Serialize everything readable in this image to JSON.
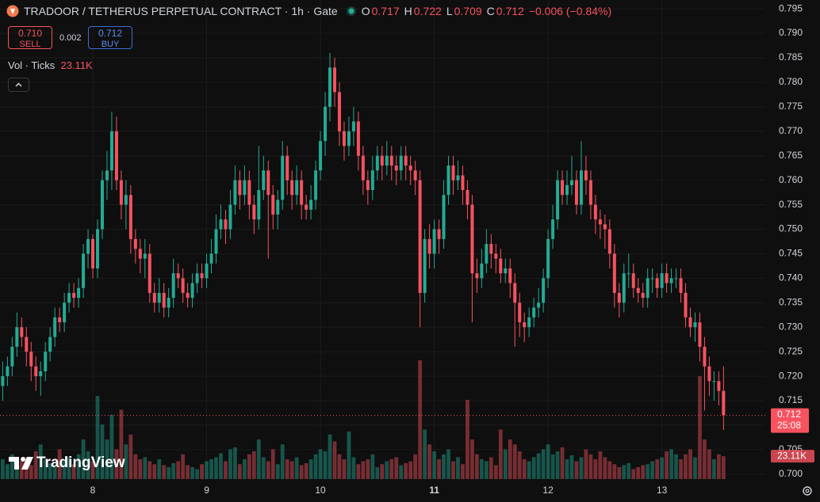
{
  "chart_data": {
    "type": "candlestick",
    "title": "TRADOOR / TETHERUS PERPETUAL CONTRACT · 1h · Gate",
    "ohlc_labels": [
      "O",
      "H",
      "L",
      "C"
    ],
    "change_label": "−0.006 (−0.84%)",
    "sell_price": "0.710",
    "sell_label": "SELL",
    "spread": "0.002",
    "buy_price": "0.712",
    "buy_label": "BUY",
    "volume_title": "Vol · Ticks",
    "volume_value_label": "23.11K",
    "countdown": "25:08",
    "watermark": "TradingView",
    "up_color": "#22ab94",
    "down_color": "#f7525f",
    "ylim": [
      0.699,
      0.7968
    ],
    "yticks": [
      {
        "value": 0.7,
        "label": "0.700"
      },
      {
        "value": 0.705,
        "label": "0.705"
      },
      {
        "value": 0.71,
        "label": "0.710"
      },
      {
        "value": 0.715,
        "label": "0.715"
      },
      {
        "value": 0.72,
        "label": "0.720"
      },
      {
        "value": 0.725,
        "label": "0.725"
      },
      {
        "value": 0.73,
        "label": "0.730"
      },
      {
        "value": 0.735,
        "label": "0.735"
      },
      {
        "value": 0.74,
        "label": "0.740"
      },
      {
        "value": 0.745,
        "label": "0.745"
      },
      {
        "value": 0.75,
        "label": "0.750"
      },
      {
        "value": 0.755,
        "label": "0.755"
      },
      {
        "value": 0.76,
        "label": "0.760"
      },
      {
        "value": 0.765,
        "label": "0.765"
      },
      {
        "value": 0.77,
        "label": "0.770"
      },
      {
        "value": 0.775,
        "label": "0.775"
      },
      {
        "value": 0.78,
        "label": "0.780"
      },
      {
        "value": 0.785,
        "label": "0.785"
      },
      {
        "value": 0.79,
        "label": "0.790"
      },
      {
        "value": 0.795,
        "label": "0.795"
      }
    ],
    "xticks": [
      {
        "value": 19,
        "label": "8"
      },
      {
        "value": 43,
        "label": "9"
      },
      {
        "value": 67,
        "label": "10"
      },
      {
        "value": 91,
        "label": "11"
      },
      {
        "value": 115,
        "label": "12"
      },
      {
        "value": 139,
        "label": "13"
      }
    ],
    "ohlc": [
      [
        0.718,
        0.723,
        0.715,
        0.72
      ],
      [
        0.72,
        0.724,
        0.718,
        0.722
      ],
      [
        0.722,
        0.728,
        0.72,
        0.726
      ],
      [
        0.726,
        0.733,
        0.724,
        0.73
      ],
      [
        0.73,
        0.732,
        0.726,
        0.728
      ],
      [
        0.728,
        0.73,
        0.722,
        0.725
      ],
      [
        0.725,
        0.727,
        0.719,
        0.722
      ],
      [
        0.722,
        0.724,
        0.717,
        0.72
      ],
      [
        0.72,
        0.723,
        0.716,
        0.721
      ],
      [
        0.721,
        0.727,
        0.719,
        0.725
      ],
      [
        0.725,
        0.73,
        0.723,
        0.728
      ],
      [
        0.728,
        0.734,
        0.726,
        0.732
      ],
      [
        0.732,
        0.734,
        0.729,
        0.731
      ],
      [
        0.731,
        0.737,
        0.729,
        0.735
      ],
      [
        0.735,
        0.739,
        0.733,
        0.737
      ],
      [
        0.737,
        0.739,
        0.734,
        0.736
      ],
      [
        0.736,
        0.74,
        0.734,
        0.738
      ],
      [
        0.738,
        0.747,
        0.736,
        0.745
      ],
      [
        0.745,
        0.75,
        0.742,
        0.748
      ],
      [
        0.748,
        0.749,
        0.74,
        0.742
      ],
      [
        0.742,
        0.752,
        0.74,
        0.75
      ],
      [
        0.75,
        0.762,
        0.748,
        0.76
      ],
      [
        0.76,
        0.766,
        0.756,
        0.762
      ],
      [
        0.762,
        0.774,
        0.758,
        0.77
      ],
      [
        0.77,
        0.773,
        0.758,
        0.76
      ],
      [
        0.76,
        0.762,
        0.752,
        0.755
      ],
      [
        0.755,
        0.76,
        0.75,
        0.757
      ],
      [
        0.757,
        0.759,
        0.745,
        0.748
      ],
      [
        0.748,
        0.75,
        0.743,
        0.746
      ],
      [
        0.746,
        0.748,
        0.741,
        0.744
      ],
      [
        0.744,
        0.748,
        0.74,
        0.745
      ],
      [
        0.745,
        0.747,
        0.735,
        0.737
      ],
      [
        0.737,
        0.739,
        0.733,
        0.735
      ],
      [
        0.735,
        0.74,
        0.733,
        0.737
      ],
      [
        0.737,
        0.739,
        0.732,
        0.734
      ],
      [
        0.734,
        0.738,
        0.732,
        0.736
      ],
      [
        0.736,
        0.744,
        0.734,
        0.741
      ],
      [
        0.741,
        0.743,
        0.738,
        0.74
      ],
      [
        0.74,
        0.742,
        0.735,
        0.737
      ],
      [
        0.737,
        0.739,
        0.734,
        0.736
      ],
      [
        0.736,
        0.741,
        0.734,
        0.739
      ],
      [
        0.739,
        0.743,
        0.737,
        0.741
      ],
      [
        0.741,
        0.743,
        0.738,
        0.74
      ],
      [
        0.74,
        0.745,
        0.738,
        0.743
      ],
      [
        0.743,
        0.748,
        0.741,
        0.745
      ],
      [
        0.745,
        0.753,
        0.743,
        0.75
      ],
      [
        0.75,
        0.755,
        0.748,
        0.752
      ],
      [
        0.752,
        0.754,
        0.747,
        0.75
      ],
      [
        0.75,
        0.758,
        0.748,
        0.755
      ],
      [
        0.755,
        0.763,
        0.753,
        0.76
      ],
      [
        0.76,
        0.762,
        0.754,
        0.757
      ],
      [
        0.757,
        0.763,
        0.755,
        0.76
      ],
      [
        0.76,
        0.762,
        0.752,
        0.755
      ],
      [
        0.755,
        0.757,
        0.749,
        0.752
      ],
      [
        0.752,
        0.767,
        0.75,
        0.758
      ],
      [
        0.758,
        0.765,
        0.756,
        0.762
      ],
      [
        0.762,
        0.764,
        0.744,
        0.757
      ],
      [
        0.757,
        0.759,
        0.75,
        0.753
      ],
      [
        0.753,
        0.758,
        0.75,
        0.756
      ],
      [
        0.756,
        0.768,
        0.754,
        0.765
      ],
      [
        0.765,
        0.767,
        0.757,
        0.76
      ],
      [
        0.76,
        0.762,
        0.754,
        0.757
      ],
      [
        0.757,
        0.763,
        0.755,
        0.76
      ],
      [
        0.76,
        0.762,
        0.752,
        0.755
      ],
      [
        0.755,
        0.757,
        0.752,
        0.754
      ],
      [
        0.754,
        0.759,
        0.752,
        0.756
      ],
      [
        0.756,
        0.764,
        0.754,
        0.762
      ],
      [
        0.762,
        0.77,
        0.76,
        0.768
      ],
      [
        0.768,
        0.778,
        0.765,
        0.775
      ],
      [
        0.775,
        0.786,
        0.772,
        0.783
      ],
      [
        0.783,
        0.785,
        0.775,
        0.778
      ],
      [
        0.778,
        0.78,
        0.767,
        0.77
      ],
      [
        0.77,
        0.772,
        0.764,
        0.767
      ],
      [
        0.767,
        0.773,
        0.765,
        0.77
      ],
      [
        0.77,
        0.775,
        0.767,
        0.772
      ],
      [
        0.772,
        0.774,
        0.762,
        0.765
      ],
      [
        0.765,
        0.767,
        0.757,
        0.76
      ],
      [
        0.76,
        0.762,
        0.755,
        0.758
      ],
      [
        0.758,
        0.765,
        0.756,
        0.762
      ],
      [
        0.762,
        0.767,
        0.76,
        0.765
      ],
      [
        0.765,
        0.767,
        0.76,
        0.763
      ],
      [
        0.763,
        0.768,
        0.761,
        0.765
      ],
      [
        0.765,
        0.767,
        0.76,
        0.763
      ],
      [
        0.763,
        0.765,
        0.759,
        0.762
      ],
      [
        0.762,
        0.767,
        0.76,
        0.765
      ],
      [
        0.765,
        0.767,
        0.76,
        0.763
      ],
      [
        0.763,
        0.765,
        0.759,
        0.762
      ],
      [
        0.762,
        0.764,
        0.757,
        0.76
      ],
      [
        0.76,
        0.762,
        0.73,
        0.737
      ],
      [
        0.737,
        0.75,
        0.735,
        0.748
      ],
      [
        0.748,
        0.751,
        0.742,
        0.745
      ],
      [
        0.745,
        0.752,
        0.742,
        0.75
      ],
      [
        0.75,
        0.752,
        0.745,
        0.748
      ],
      [
        0.748,
        0.76,
        0.746,
        0.757
      ],
      [
        0.757,
        0.765,
        0.755,
        0.763
      ],
      [
        0.763,
        0.765,
        0.757,
        0.76
      ],
      [
        0.76,
        0.764,
        0.758,
        0.761
      ],
      [
        0.761,
        0.763,
        0.755,
        0.758
      ],
      [
        0.758,
        0.76,
        0.752,
        0.755
      ],
      [
        0.755,
        0.757,
        0.731,
        0.741
      ],
      [
        0.741,
        0.744,
        0.737,
        0.74
      ],
      [
        0.74,
        0.746,
        0.738,
        0.743
      ],
      [
        0.743,
        0.75,
        0.741,
        0.747
      ],
      [
        0.747,
        0.749,
        0.742,
        0.745
      ],
      [
        0.745,
        0.747,
        0.741,
        0.744
      ],
      [
        0.744,
        0.746,
        0.739,
        0.741
      ],
      [
        0.741,
        0.744,
        0.739,
        0.742
      ],
      [
        0.742,
        0.744,
        0.736,
        0.739
      ],
      [
        0.739,
        0.741,
        0.726,
        0.735
      ],
      [
        0.735,
        0.737,
        0.728,
        0.731
      ],
      [
        0.731,
        0.733,
        0.727,
        0.73
      ],
      [
        0.73,
        0.734,
        0.728,
        0.732
      ],
      [
        0.732,
        0.736,
        0.73,
        0.734
      ],
      [
        0.734,
        0.738,
        0.732,
        0.735
      ],
      [
        0.735,
        0.742,
        0.733,
        0.74
      ],
      [
        0.74,
        0.75,
        0.738,
        0.748
      ],
      [
        0.748,
        0.755,
        0.746,
        0.752
      ],
      [
        0.752,
        0.762,
        0.75,
        0.76
      ],
      [
        0.76,
        0.762,
        0.755,
        0.757
      ],
      [
        0.757,
        0.762,
        0.755,
        0.759
      ],
      [
        0.759,
        0.765,
        0.757,
        0.76
      ],
      [
        0.76,
        0.762,
        0.753,
        0.755
      ],
      [
        0.755,
        0.768,
        0.753,
        0.762
      ],
      [
        0.762,
        0.765,
        0.757,
        0.76
      ],
      [
        0.76,
        0.762,
        0.752,
        0.755
      ],
      [
        0.755,
        0.757,
        0.749,
        0.752
      ],
      [
        0.752,
        0.754,
        0.748,
        0.751
      ],
      [
        0.751,
        0.753,
        0.746,
        0.75
      ],
      [
        0.75,
        0.752,
        0.742,
        0.745
      ],
      [
        0.745,
        0.747,
        0.734,
        0.737
      ],
      [
        0.737,
        0.739,
        0.732,
        0.735
      ],
      [
        0.735,
        0.743,
        0.733,
        0.741
      ],
      [
        0.741,
        0.745,
        0.738,
        0.741
      ],
      [
        0.741,
        0.743,
        0.736,
        0.738
      ],
      [
        0.738,
        0.74,
        0.735,
        0.737
      ],
      [
        0.737,
        0.739,
        0.734,
        0.736
      ],
      [
        0.736,
        0.742,
        0.734,
        0.74
      ],
      [
        0.74,
        0.742,
        0.737,
        0.74
      ],
      [
        0.74,
        0.741,
        0.736,
        0.738
      ],
      [
        0.738,
        0.743,
        0.736,
        0.741
      ],
      [
        0.741,
        0.743,
        0.737,
        0.739
      ],
      [
        0.739,
        0.742,
        0.737,
        0.74
      ],
      [
        0.74,
        0.742,
        0.738,
        0.74
      ],
      [
        0.74,
        0.742,
        0.735,
        0.737
      ],
      [
        0.737,
        0.739,
        0.73,
        0.732
      ],
      [
        0.732,
        0.734,
        0.728,
        0.73
      ],
      [
        0.73,
        0.733,
        0.727,
        0.731
      ],
      [
        0.731,
        0.733,
        0.723,
        0.726
      ],
      [
        0.726,
        0.728,
        0.713,
        0.722
      ],
      [
        0.722,
        0.724,
        0.716,
        0.719
      ],
      [
        0.719,
        0.721,
        0.715,
        0.719
      ],
      [
        0.719,
        0.721,
        0.714,
        0.717
      ],
      [
        0.717,
        0.722,
        0.709,
        0.712
      ]
    ],
    "volume": [
      20,
      15,
      25,
      12,
      18,
      22,
      14,
      28,
      35,
      20,
      16,
      12,
      30,
      18,
      22,
      15,
      25,
      40,
      28,
      18,
      84,
      55,
      40,
      65,
      30,
      70,
      35,
      45,
      25,
      20,
      22,
      18,
      15,
      20,
      14,
      12,
      16,
      18,
      25,
      14,
      12,
      10,
      15,
      18,
      20,
      22,
      26,
      18,
      30,
      32,
      15,
      20,
      25,
      28,
      40,
      22,
      18,
      30,
      15,
      35,
      20,
      18,
      22,
      14,
      16,
      20,
      25,
      30,
      28,
      45,
      38,
      25,
      20,
      48,
      22,
      15,
      18,
      20,
      25,
      12,
      15,
      18,
      20,
      22,
      14,
      16,
      18,
      25,
      120,
      50,
      35,
      28,
      20,
      25,
      30,
      18,
      22,
      15,
      80,
      40,
      25,
      20,
      18,
      22,
      14,
      50,
      30,
      40,
      35,
      28,
      20,
      18,
      22,
      26,
      30,
      35,
      25,
      28,
      32,
      20,
      24,
      18,
      22,
      30,
      25,
      20,
      28,
      22,
      18,
      15,
      12,
      14,
      16,
      10,
      12,
      14,
      15,
      18,
      20,
      22,
      28,
      30,
      25,
      20,
      25,
      30,
      22,
      104,
      40,
      30,
      20,
      25,
      23.11
    ]
  }
}
